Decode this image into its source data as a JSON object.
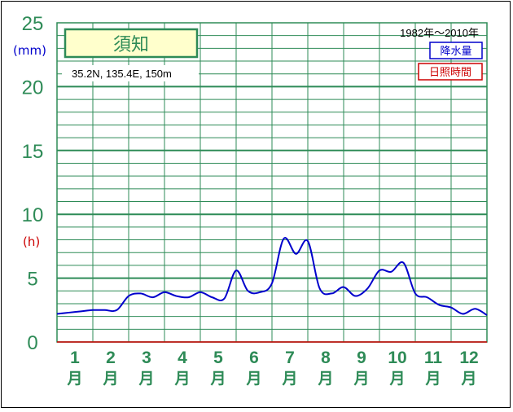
{
  "chart_data": {
    "type": "line",
    "station": "須知",
    "location": "35.2N,  135.4E,  150m",
    "period": "1982年〜2010年",
    "legend": [
      {
        "label": "降水量",
        "color": "#0000cc"
      },
      {
        "label": "日照時間",
        "color": "#cc0000"
      }
    ],
    "y_unit_primary": "(mm)",
    "y_unit_secondary": "(h)",
    "ylim": [
      0,
      25
    ],
    "yticks": [
      "0",
      "5",
      "10",
      "15",
      "20",
      "25"
    ],
    "ytick_values": [
      0,
      5,
      10,
      15,
      20,
      25
    ],
    "months": [
      "1",
      "2",
      "3",
      "4",
      "5",
      "6",
      "7",
      "8",
      "9",
      "10",
      "11",
      "12"
    ],
    "month_unit": "月",
    "series": [
      {
        "name": "降水量",
        "color": "#0000cc",
        "x": [
          0,
          0.33,
          0.67,
          1,
          1.33,
          1.67,
          2,
          2.33,
          2.67,
          3,
          3.33,
          3.67,
          4,
          4.33,
          4.67,
          5,
          5.33,
          5.67,
          6,
          6.33,
          6.67,
          7,
          7.33,
          7.67,
          8,
          8.33,
          8.67,
          9,
          9.33,
          9.67,
          10,
          10.33,
          10.67,
          11,
          11.33,
          11.67,
          12
        ],
        "values": [
          2.2,
          2.3,
          2.4,
          2.5,
          2.5,
          2.5,
          3.6,
          3.8,
          3.5,
          3.9,
          3.6,
          3.5,
          3.9,
          3.5,
          3.4,
          5.6,
          4.0,
          3.9,
          4.6,
          8.1,
          6.9,
          7.9,
          4.2,
          3.8,
          4.3,
          3.6,
          4.2,
          5.6,
          5.5,
          6.2,
          3.8,
          3.5,
          2.9,
          2.7,
          2.2,
          2.6,
          2.1
        ]
      },
      {
        "name": "日照時間",
        "color": "#cc0000",
        "x": [
          0,
          12
        ],
        "values": [
          0,
          0
        ]
      }
    ]
  }
}
